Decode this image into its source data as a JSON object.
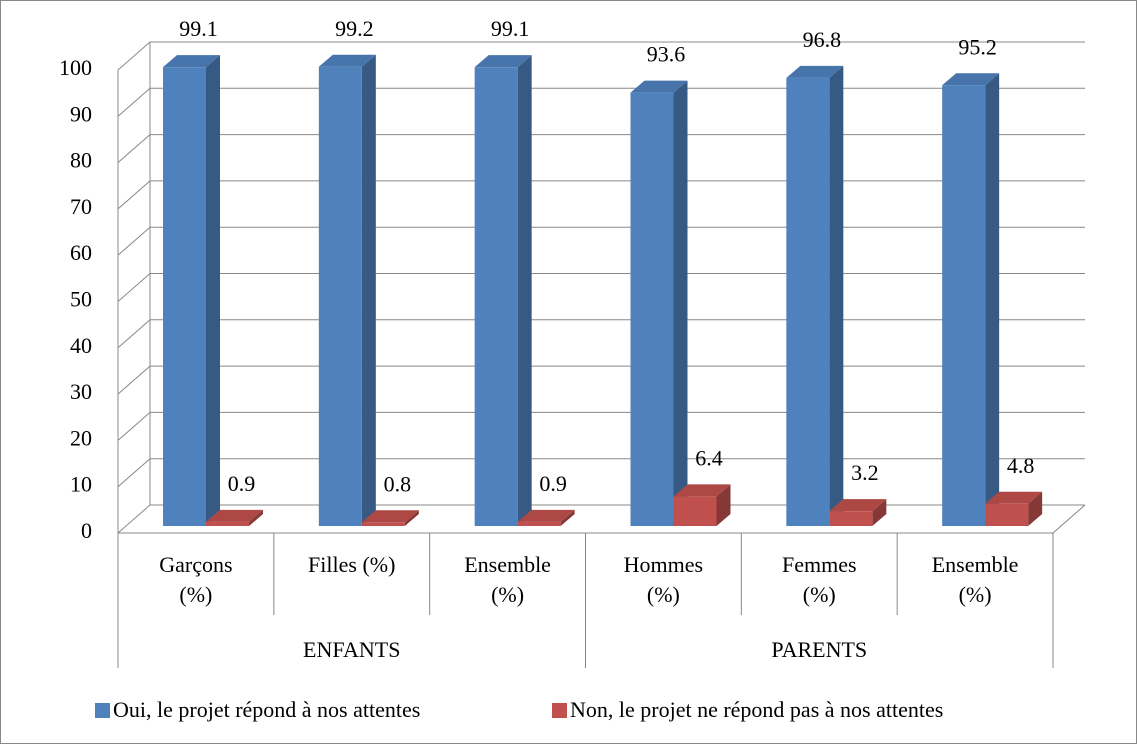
{
  "chart_data": {
    "type": "bar3d",
    "groups": [
      {
        "label": "ENFANTS",
        "categories": [
          "Garçons (%)",
          "Filles (%)",
          "Ensemble (%)"
        ]
      },
      {
        "label": "PARENTS",
        "categories": [
          "Hommes (%)",
          "Femmes (%)",
          "Ensemble (%)"
        ]
      }
    ],
    "series": [
      {
        "name": "Oui, le projet répond à nos attentes",
        "color": "#4f81bd",
        "values": [
          99.1,
          99.2,
          99.1,
          93.6,
          96.8,
          95.2
        ]
      },
      {
        "name": "Non, le projet ne répond pas à nos attentes",
        "color": "#c0504d",
        "values": [
          0.9,
          0.8,
          0.9,
          6.4,
          3.2,
          4.8
        ]
      }
    ],
    "ylim": [
      0,
      100
    ],
    "yticks": [
      0,
      10,
      20,
      30,
      40,
      50,
      60,
      70,
      80,
      90,
      100
    ],
    "grid": true,
    "legend": "bottom"
  }
}
